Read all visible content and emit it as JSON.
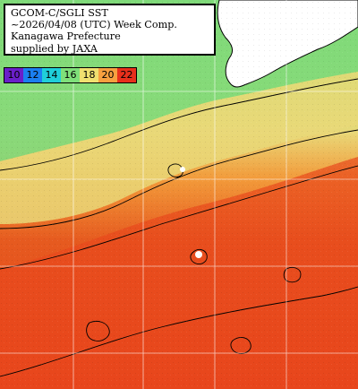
{
  "title_lines": [
    "GCOM-C/SGLI SST",
    "~2026/04/08 (UTC) Week Comp.",
    "Kanagawa Prefecture",
    "supplied by JAXA"
  ],
  "legend": {
    "values": [
      "10",
      "12",
      "14",
      "16",
      "18",
      "20",
      "22"
    ],
    "colors": [
      "#6a1fc9",
      "#1b7ff0",
      "#1fcfd9",
      "#7fe07a",
      "#f0e070",
      "#f7a040",
      "#e8301c"
    ]
  },
  "colors": {
    "land": "#ffffff",
    "ocean_warm": "#e65a1f",
    "ocean_hot": "#e8401c",
    "ocean_mid": "#f29a3a",
    "ocean_cool": "#e9d878",
    "ocean_coast": "#7fd97a",
    "grid": "#ffffff",
    "contour": "#000000"
  }
}
